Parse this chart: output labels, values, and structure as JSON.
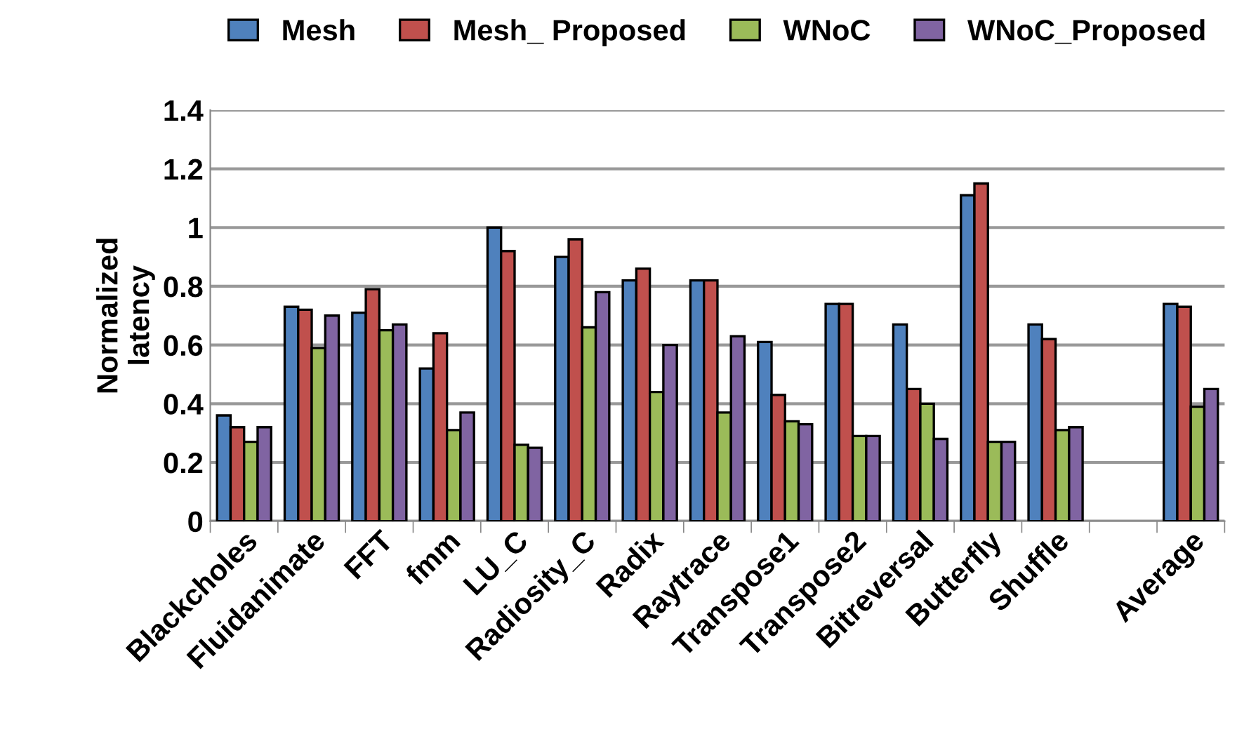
{
  "chart_data": {
    "type": "bar",
    "ylabel": "Normalized\nlatency",
    "categories": [
      "Blackcholes",
      "Fluidanimate",
      "FFT",
      "fmm",
      "LU_C",
      "Radiosity_C",
      "Radix",
      "Raytrace",
      "Transpose1",
      "Transpose2",
      "Bitreversal",
      "Butterfly",
      "Shuffle",
      null,
      "Average"
    ],
    "series": [
      {
        "name": "Mesh",
        "color": "#4f81bd",
        "values": [
          0.36,
          0.73,
          0.71,
          0.52,
          1.0,
          0.9,
          0.82,
          0.82,
          0.61,
          0.74,
          0.67,
          1.11,
          0.67,
          null,
          0.74
        ]
      },
      {
        "name": "Mesh_ Proposed",
        "color": "#c0504d",
        "values": [
          0.32,
          0.72,
          0.79,
          0.64,
          0.92,
          0.96,
          0.86,
          0.82,
          0.43,
          0.74,
          0.45,
          1.15,
          0.62,
          null,
          0.73
        ]
      },
      {
        "name": "WNoC",
        "color": "#9bbb59",
        "values": [
          0.27,
          0.59,
          0.65,
          0.31,
          0.26,
          0.66,
          0.44,
          0.37,
          0.34,
          0.29,
          0.4,
          0.27,
          0.31,
          null,
          0.39
        ]
      },
      {
        "name": "WNoC_Proposed",
        "color": "#8064a2",
        "values": [
          0.32,
          0.7,
          0.67,
          0.37,
          0.25,
          0.78,
          0.6,
          0.63,
          0.33,
          0.29,
          0.28,
          0.27,
          0.32,
          null,
          0.45
        ]
      }
    ],
    "ylim": [
      0,
      1.4
    ],
    "yticks": [
      0,
      0.2,
      0.4,
      0.6,
      0.8,
      1,
      1.2,
      1.4
    ],
    "grid": "y",
    "legend": "top"
  }
}
